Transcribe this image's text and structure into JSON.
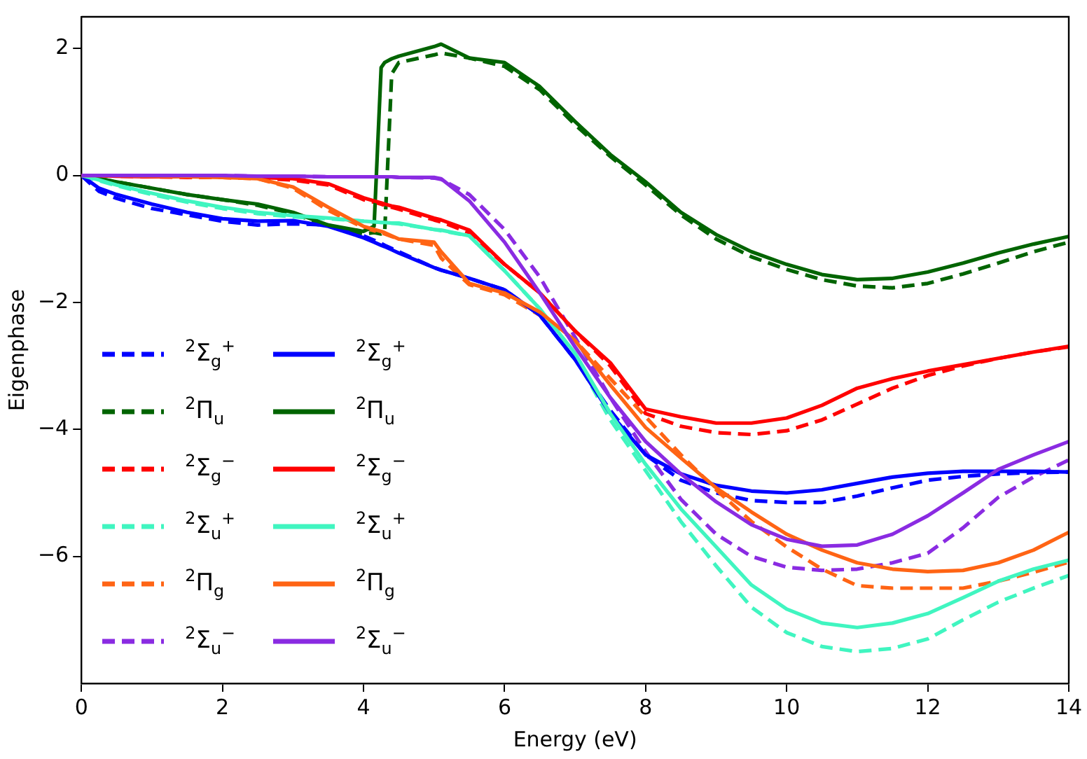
{
  "chart_data": {
    "type": "line",
    "xlabel": "Energy (eV)",
    "ylabel": "Eigenphase",
    "xlim": [
      0,
      14
    ],
    "xticks": [
      0,
      2,
      4,
      6,
      8,
      10,
      12,
      14
    ],
    "ylim": [
      -8,
      2.5
    ],
    "yticks": [
      -6,
      -4,
      -2,
      0,
      2
    ],
    "legend": "lower left",
    "x": [
      0,
      0.25,
      0.5,
      1,
      1.5,
      2,
      2.5,
      3,
      3.5,
      4,
      4.15,
      4.25,
      4.3,
      4.4,
      4.5,
      5,
      5.1,
      5.5,
      6,
      6.5,
      7,
      7.5,
      8,
      8.5,
      9,
      9.5,
      10,
      10.5,
      11,
      11.5,
      12,
      12.5,
      13,
      13.5,
      14
    ],
    "series": [
      {
        "name": "$^{2}$Σ$_{g}$$^{+}$",
        "color": "#0000ff",
        "line_style": "dashed",
        "values": [
          0,
          -0.25,
          -0.36,
          -0.52,
          -0.62,
          -0.72,
          -0.78,
          -0.76,
          -0.78,
          -0.95,
          -1.02,
          -1.07,
          -1.1,
          -1.15,
          -1.2,
          -1.45,
          -1.49,
          -1.62,
          -1.8,
          -2.2,
          -2.9,
          -3.7,
          -4.4,
          -4.8,
          -5.0,
          -5.12,
          -5.15,
          -5.15,
          -5.05,
          -4.92,
          -4.8,
          -4.74,
          -4.7,
          -4.68,
          -4.67
        ]
      },
      {
        "name": "$^{2}$Π$_{u}$",
        "color": "#006400",
        "line_style": "dashed",
        "values": [
          0,
          -0.05,
          -0.1,
          -0.2,
          -0.3,
          -0.38,
          -0.47,
          -0.6,
          -0.8,
          -0.92,
          -0.9,
          -0.92,
          -0.9,
          1.6,
          1.78,
          1.9,
          1.93,
          1.85,
          1.72,
          1.35,
          0.8,
          0.3,
          -0.15,
          -0.62,
          -1.0,
          -1.28,
          -1.48,
          -1.64,
          -1.74,
          -1.77,
          -1.7,
          -1.55,
          -1.38,
          -1.2,
          -1.05
        ]
      },
      {
        "name": "$^{2}$Σ$_{g}$$^{−}$",
        "color": "#ff0000",
        "line_style": "dashed",
        "values": [
          0,
          0,
          -0.01,
          -0.02,
          -0.03,
          -0.03,
          -0.04,
          -0.07,
          -0.15,
          -0.38,
          -0.42,
          -0.45,
          -0.47,
          -0.5,
          -0.53,
          -0.7,
          -0.73,
          -0.9,
          -1.4,
          -1.85,
          -2.45,
          -3.0,
          -3.75,
          -3.95,
          -4.05,
          -4.08,
          -4.02,
          -3.85,
          -3.6,
          -3.35,
          -3.15,
          -3.0,
          -2.88,
          -2.78,
          -2.7
        ]
      },
      {
        "name": "$^{2}$Σ$_{u}$$^{+}$",
        "color": "#40f5c0",
        "line_style": "dashed",
        "values": [
          0,
          -0.08,
          -0.16,
          -0.3,
          -0.42,
          -0.52,
          -0.6,
          -0.65,
          -0.68,
          -0.72,
          -0.73,
          -0.74,
          -0.74,
          -0.75,
          -0.76,
          -0.85,
          -0.87,
          -0.95,
          -1.5,
          -2.1,
          -2.85,
          -3.85,
          -4.65,
          -5.45,
          -6.15,
          -6.8,
          -7.2,
          -7.42,
          -7.5,
          -7.45,
          -7.3,
          -7.0,
          -6.72,
          -6.5,
          -6.3
        ]
      },
      {
        "name": "$^{2}$Π$_{g}$",
        "color": "#ff6414",
        "line_style": "dashed",
        "values": [
          0,
          0,
          0,
          -0.01,
          -0.02,
          -0.03,
          -0.05,
          -0.2,
          -0.55,
          -0.82,
          -0.87,
          -0.9,
          -0.92,
          -0.96,
          -1.0,
          -1.1,
          -1.3,
          -1.72,
          -1.88,
          -2.2,
          -2.6,
          -3.2,
          -3.8,
          -4.4,
          -4.95,
          -5.45,
          -5.85,
          -6.2,
          -6.46,
          -6.5,
          -6.5,
          -6.5,
          -6.39,
          -6.25,
          -6.09
        ]
      },
      {
        "name": "$^{2}$Σ$_{u}$$^{−}$",
        "color": "#8a2be2",
        "line_style": "dashed",
        "values": [
          null,
          null,
          0,
          0,
          0,
          0,
          -0.01,
          -0.01,
          -0.02,
          -0.02,
          -0.02,
          -0.02,
          -0.02,
          -0.02,
          -0.03,
          -0.04,
          -0.06,
          -0.3,
          -0.85,
          -1.6,
          -2.55,
          -3.5,
          -4.35,
          -5.1,
          -5.65,
          -6.0,
          -6.17,
          -6.22,
          -6.2,
          -6.1,
          -5.95,
          -5.55,
          -5.07,
          -4.75,
          -4.48
        ]
      },
      {
        "name": "$^{2}$Σ$_{g}$$^{+}$",
        "color": "#0000ff",
        "line_style": "solid",
        "values": [
          0,
          -0.2,
          -0.3,
          -0.45,
          -0.58,
          -0.68,
          -0.72,
          -0.71,
          -0.8,
          -0.98,
          -1.05,
          -1.1,
          -1.12,
          -1.17,
          -1.22,
          -1.45,
          -1.49,
          -1.62,
          -1.8,
          -2.2,
          -2.9,
          -3.75,
          -4.4,
          -4.7,
          -4.88,
          -4.97,
          -5.0,
          -4.95,
          -4.85,
          -4.75,
          -4.69,
          -4.66,
          -4.66,
          -4.66,
          -4.67
        ]
      },
      {
        "name": "$^{2}$Π$_{u}$",
        "color": "#006400",
        "line_style": "solid",
        "values": [
          0,
          -0.05,
          -0.1,
          -0.2,
          -0.3,
          -0.38,
          -0.45,
          -0.58,
          -0.78,
          -0.88,
          -0.8,
          1.7,
          1.78,
          1.84,
          1.88,
          2.03,
          2.07,
          1.85,
          1.78,
          1.4,
          0.85,
          0.33,
          -0.1,
          -0.58,
          -0.93,
          -1.2,
          -1.4,
          -1.56,
          -1.64,
          -1.62,
          -1.52,
          -1.38,
          -1.22,
          -1.08,
          -0.96
        ]
      },
      {
        "name": "$^{2}$Σ$_{g}$$^{−}$",
        "color": "#ff0000",
        "line_style": "solid",
        "values": [
          0,
          0,
          -0.01,
          -0.02,
          -0.02,
          -0.02,
          -0.03,
          -0.05,
          -0.13,
          -0.35,
          -0.4,
          -0.43,
          -0.45,
          -0.48,
          -0.5,
          -0.67,
          -0.7,
          -0.86,
          -1.4,
          -1.85,
          -2.45,
          -2.95,
          -3.68,
          -3.8,
          -3.9,
          -3.9,
          -3.82,
          -3.62,
          -3.35,
          -3.2,
          -3.08,
          -2.98,
          -2.88,
          -2.78,
          -2.69
        ]
      },
      {
        "name": "$^{2}$Σ$_{u}$$^{+}$",
        "color": "#40f5c0",
        "line_style": "solid",
        "values": [
          0,
          -0.07,
          -0.15,
          -0.28,
          -0.4,
          -0.5,
          -0.58,
          -0.63,
          -0.67,
          -0.72,
          -0.73,
          -0.74,
          -0.74,
          -0.75,
          -0.75,
          -0.85,
          -0.86,
          -0.95,
          -1.5,
          -2.1,
          -2.8,
          -3.75,
          -4.55,
          -5.25,
          -5.85,
          -6.45,
          -6.83,
          -7.05,
          -7.12,
          -7.05,
          -6.9,
          -6.65,
          -6.39,
          -6.2,
          -6.06
        ]
      },
      {
        "name": "$^{2}$Π$_{g}$",
        "color": "#ff6414",
        "line_style": "solid",
        "values": [
          0,
          0,
          0,
          -0.01,
          -0.02,
          -0.03,
          -0.05,
          -0.18,
          -0.5,
          -0.8,
          -0.85,
          -0.88,
          -0.9,
          -0.95,
          -1.0,
          -1.05,
          -1.2,
          -1.7,
          -1.85,
          -2.15,
          -2.6,
          -3.3,
          -3.97,
          -4.45,
          -4.92,
          -5.3,
          -5.65,
          -5.9,
          -6.1,
          -6.2,
          -6.24,
          -6.22,
          -6.1,
          -5.9,
          -5.62
        ]
      },
      {
        "name": "$^{2}$Σ$_{u}$$^{−}$",
        "color": "#8a2be2",
        "line_style": "solid",
        "values": [
          0,
          0,
          0,
          0,
          0,
          0,
          -0.01,
          -0.01,
          -0.02,
          -0.02,
          -0.02,
          -0.02,
          -0.02,
          -0.02,
          -0.03,
          -0.03,
          -0.05,
          -0.4,
          -1.05,
          -1.85,
          -2.7,
          -3.5,
          -4.19,
          -4.7,
          -5.14,
          -5.5,
          -5.73,
          -5.84,
          -5.82,
          -5.65,
          -5.36,
          -5.0,
          -4.63,
          -4.4,
          -4.19
        ]
      }
    ]
  }
}
